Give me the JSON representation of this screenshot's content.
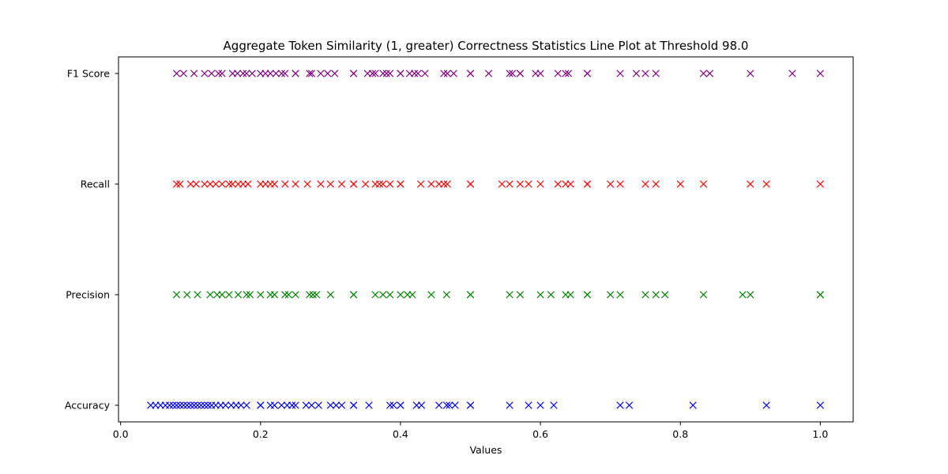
{
  "chart_data": {
    "type": "scatter",
    "title": "Aggregate Token Similarity (1, greater) Correctness Statistics Line Plot at Threshold 98.0",
    "xlabel": "Values",
    "ylabel": "",
    "xlim": [
      -0.003,
      1.047
    ],
    "xticks": [
      0.0,
      0.2,
      0.4,
      0.6,
      0.8,
      1.0
    ],
    "xtick_labels": [
      "0.0",
      "0.2",
      "0.4",
      "0.6",
      "0.8",
      "1.0"
    ],
    "categories": [
      "Accuracy",
      "Precision",
      "Recall",
      "F1 Score"
    ],
    "marker": "x",
    "grid": false,
    "series": [
      {
        "category": "Accuracy",
        "color": "#0000ff",
        "x": [
          0.043,
          0.05,
          0.057,
          0.064,
          0.07,
          0.075,
          0.08,
          0.085,
          0.09,
          0.095,
          0.1,
          0.105,
          0.11,
          0.115,
          0.12,
          0.125,
          0.13,
          0.136,
          0.143,
          0.15,
          0.158,
          0.165,
          0.172,
          0.18,
          0.2,
          0.2,
          0.214,
          0.22,
          0.23,
          0.238,
          0.245,
          0.25,
          0.265,
          0.273,
          0.283,
          0.3,
          0.308,
          0.316,
          0.333,
          0.333,
          0.355,
          0.385,
          0.39,
          0.4,
          0.4,
          0.423,
          0.43,
          0.455,
          0.466,
          0.47,
          0.478,
          0.5,
          0.5,
          0.556,
          0.583,
          0.6,
          0.619,
          0.714,
          0.727,
          0.818,
          0.923,
          1.0
        ]
      },
      {
        "category": "Precision",
        "color": "#008000",
        "x": [
          0.08,
          0.095,
          0.11,
          0.128,
          0.138,
          0.145,
          0.155,
          0.168,
          0.18,
          0.185,
          0.2,
          0.214,
          0.22,
          0.235,
          0.24,
          0.25,
          0.27,
          0.275,
          0.28,
          0.3,
          0.333,
          0.333,
          0.364,
          0.375,
          0.385,
          0.4,
          0.41,
          0.417,
          0.444,
          0.466,
          0.5,
          0.5,
          0.556,
          0.571,
          0.6,
          0.615,
          0.636,
          0.643,
          0.667,
          0.667,
          0.7,
          0.714,
          0.75,
          0.765,
          0.778,
          0.833,
          0.889,
          0.9,
          1.0,
          1.0
        ]
      },
      {
        "category": "Recall",
        "color": "#ff0000",
        "x": [
          0.08,
          0.085,
          0.1,
          0.108,
          0.12,
          0.128,
          0.136,
          0.145,
          0.155,
          0.16,
          0.168,
          0.175,
          0.182,
          0.2,
          0.207,
          0.214,
          0.22,
          0.235,
          0.25,
          0.267,
          0.286,
          0.3,
          0.316,
          0.333,
          0.333,
          0.35,
          0.364,
          0.37,
          0.375,
          0.385,
          0.4,
          0.4,
          0.429,
          0.444,
          0.455,
          0.462,
          0.467,
          0.5,
          0.5,
          0.545,
          0.556,
          0.571,
          0.583,
          0.6,
          0.625,
          0.636,
          0.643,
          0.667,
          0.667,
          0.7,
          0.714,
          0.75,
          0.765,
          0.8,
          0.833,
          0.9,
          0.923,
          1.0
        ]
      },
      {
        "category": "F1 Score",
        "color": "#800080",
        "x": [
          0.08,
          0.09,
          0.105,
          0.12,
          0.13,
          0.14,
          0.145,
          0.16,
          0.167,
          0.175,
          0.18,
          0.188,
          0.2,
          0.207,
          0.214,
          0.222,
          0.23,
          0.235,
          0.25,
          0.25,
          0.27,
          0.273,
          0.286,
          0.296,
          0.306,
          0.333,
          0.333,
          0.353,
          0.36,
          0.364,
          0.375,
          0.38,
          0.385,
          0.4,
          0.4,
          0.413,
          0.42,
          0.425,
          0.435,
          0.462,
          0.467,
          0.476,
          0.5,
          0.5,
          0.526,
          0.556,
          0.56,
          0.571,
          0.571,
          0.593,
          0.6,
          0.625,
          0.636,
          0.64,
          0.667,
          0.667,
          0.714,
          0.737,
          0.75,
          0.765,
          0.833,
          0.842,
          0.9,
          0.96,
          1.0
        ]
      }
    ]
  }
}
